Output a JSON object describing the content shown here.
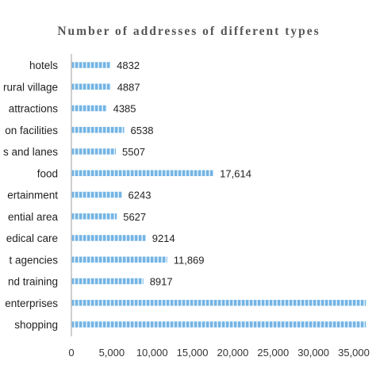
{
  "chart_data": {
    "type": "bar",
    "orientation": "horizontal",
    "title": "Number of addresses of different types",
    "xlabel": "",
    "ylabel": "",
    "xlim": [
      0,
      35000
    ],
    "x_ticks": [
      "0",
      "5,000",
      "10,000",
      "15,000",
      "20,000",
      "25,000",
      "30,000",
      "35,000"
    ],
    "x_tick_values": [
      0,
      5000,
      10000,
      15000,
      20000,
      25000,
      30000,
      35000
    ],
    "grid": false,
    "bar_color": "#74b4e4",
    "bar_stripe_color": "#dbeefb",
    "categories": [
      "hotels",
      "rural village",
      "attractions",
      "on facilities",
      "s and lanes",
      "food",
      "ertainment",
      "ential area",
      "edical care",
      "t agencies",
      "nd training",
      "enterprises",
      "shopping"
    ],
    "values": [
      4832,
      4887,
      4385,
      6538,
      5507,
      17614,
      6243,
      5627,
      9214,
      11869,
      8917,
      36500,
      36500
    ],
    "value_labels": [
      "4832",
      "4887",
      "4385",
      "6538",
      "5507",
      "17,614",
      "6243",
      "5627",
      "9214",
      "11,869",
      "8917",
      "",
      ""
    ]
  }
}
